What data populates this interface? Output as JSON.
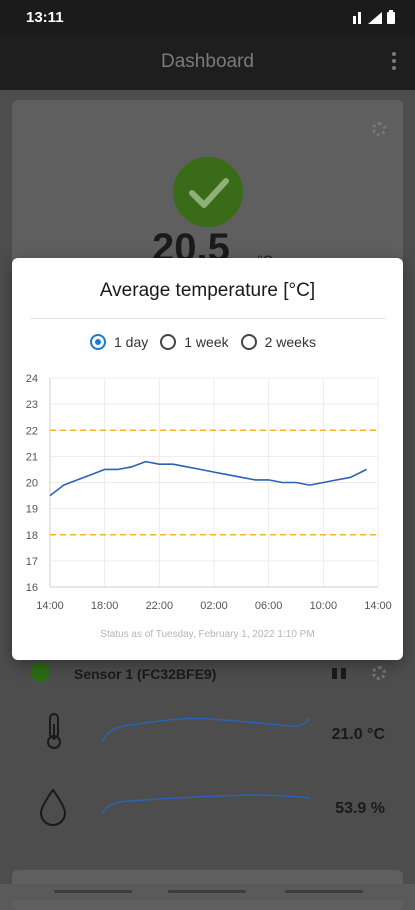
{
  "status_bar": {
    "time": "13:11",
    "icons": [
      "network-icon",
      "signal-icon",
      "battery-icon"
    ]
  },
  "app_bar": {
    "title": "Dashboard",
    "menu_icon": "more-vert-icon"
  },
  "summary": {
    "temperature": "20.5",
    "unit": "°C"
  },
  "sensor": {
    "name": "Sensor 1 (FC32BFE9)",
    "readings": [
      {
        "icon": "thermometer-icon",
        "value": "21.0 °C"
      },
      {
        "icon": "droplet-icon",
        "value": "53.9 %"
      }
    ]
  },
  "dialog": {
    "title": "Average temperature [°C]",
    "options": [
      {
        "label": "1 day",
        "selected": true
      },
      {
        "label": "1 week",
        "selected": false
      },
      {
        "label": "2 weeks",
        "selected": false
      }
    ],
    "status": "Status as of Tuesday, February 1, 2022 1:10 PM"
  },
  "chart_data": {
    "type": "line",
    "title": "",
    "xlabel": "",
    "ylabel": "",
    "ylim": [
      16,
      24
    ],
    "yticks": [
      "16",
      "17",
      "18",
      "19",
      "20",
      "21",
      "22",
      "23",
      "24"
    ],
    "xticks": [
      "14:00",
      "18:00",
      "22:00",
      "02:00",
      "06:00",
      "10:00",
      "14:00"
    ],
    "grid": true,
    "thresholds": [
      22,
      18
    ],
    "colors": {
      "line": "#2a62b4",
      "threshold": "#f0b429"
    },
    "series": [
      {
        "x": [
          "14:00",
          "15:00",
          "16:00",
          "17:00",
          "18:00",
          "19:00",
          "20:00",
          "21:00",
          "22:00",
          "23:00",
          "00:00",
          "01:00",
          "02:00",
          "03:00",
          "04:00",
          "05:00",
          "06:00",
          "07:00",
          "08:00",
          "09:00",
          "10:00",
          "11:00",
          "12:00",
          "13:10"
        ],
        "values": [
          19.5,
          19.9,
          20.1,
          20.3,
          20.5,
          20.5,
          20.6,
          20.8,
          20.7,
          20.7,
          20.6,
          20.5,
          20.4,
          20.3,
          20.2,
          20.1,
          20.1,
          20.0,
          20.0,
          19.9,
          20.0,
          20.1,
          20.2,
          20.5
        ]
      }
    ]
  }
}
